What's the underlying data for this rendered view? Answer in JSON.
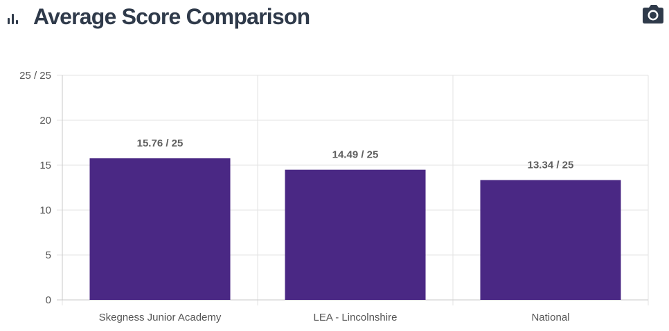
{
  "header": {
    "title": "Average Score Comparison",
    "icon": "bar-chart-icon",
    "camera_icon": "camera-icon"
  },
  "colors": {
    "bar": "#4a2884",
    "title": "#2f3a4a",
    "grid": "#e3e3e3",
    "axis_text": "#555555",
    "data_label": "#5f5f5f"
  },
  "chart_data": {
    "type": "bar",
    "categories": [
      "Skegness Junior Academy",
      "LEA - Lincolnshire",
      "National"
    ],
    "values": [
      15.76,
      14.49,
      13.34
    ],
    "data_labels": [
      "15.76 / 25",
      "14.49 / 25",
      "13.34 / 25"
    ],
    "ylim": [
      0,
      25
    ],
    "y_ticks": [
      0,
      5,
      10,
      15,
      20,
      25
    ],
    "y_tick_labels": [
      "0",
      "5",
      "10",
      "15",
      "20",
      "25 / 25"
    ],
    "grid": true,
    "xlabel": "",
    "ylabel": ""
  }
}
